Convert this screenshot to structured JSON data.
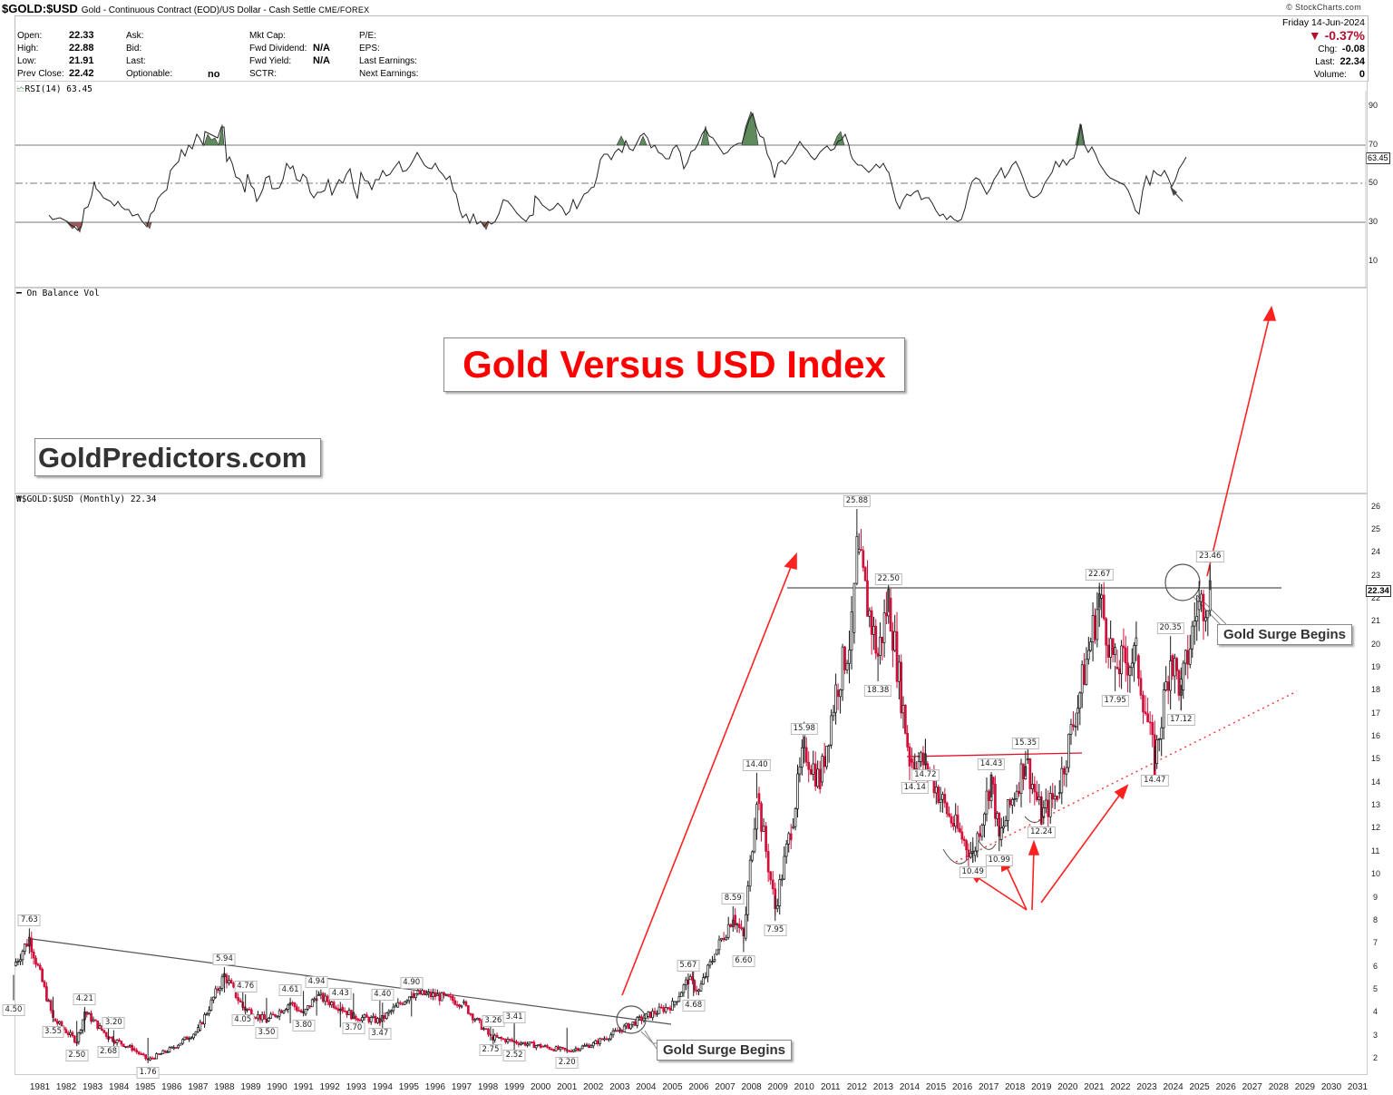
{
  "header": {
    "symbol": "$GOLD:$USD",
    "description": "Gold - Continuous Contract (EOD)/US Dollar - Cash Settle",
    "exchange": "CME/FOREX",
    "copyright": "© StockCharts.com",
    "quote": {
      "open_label": "Open:",
      "open": "22.33",
      "high_label": "High:",
      "high": "22.88",
      "low_label": "Low:",
      "low": "21.91",
      "prev_close_label": "Prev Close:",
      "prev_close": "22.42",
      "ask_label": "Ask:",
      "bid_label": "Bid:",
      "last_label": "Last:",
      "optionable_label": "Optionable:",
      "optionable": "no",
      "mkt_cap_label": "Mkt Cap:",
      "fwd_dividend_label": "Fwd Dividend:",
      "fwd_dividend": "N/A",
      "fwd_yield_label": "Fwd Yield:",
      "fwd_yield": "N/A",
      "sctr_label": "SCTR:",
      "pe_label": "P/E:",
      "eps_label": "EPS:",
      "last_earnings_label": "Last Earnings:",
      "next_earnings_label": "Next Earnings:"
    },
    "right": {
      "date": "Friday  14-Jun-2024",
      "pct_change": "▼ -0.37%",
      "chg_label": "Chg:",
      "chg": "-0.08",
      "last_label": "Last:",
      "last": "22.34",
      "volume_label": "Volume:",
      "volume": "0"
    }
  },
  "rsi_panel": {
    "legend": "RSI(14) 63.45",
    "current_value": "63.45",
    "ticks": [
      "90",
      "70",
      "50",
      "30",
      "10"
    ]
  },
  "obv_panel": {
    "legend": "On Balance Vol"
  },
  "annotations": {
    "main_title": "Gold Versus USD Index",
    "brand": "GoldPredictors.com",
    "callout_1": "Gold Surge Begins",
    "callout_2": "Gold Surge Begins"
  },
  "price_panel": {
    "legend": "$GOLD:$USD (Monthly) 22.34",
    "last_value": "22.34",
    "ticks": [
      "26",
      "25",
      "24",
      "23",
      "22",
      "21",
      "20",
      "19",
      "18",
      "17",
      "16",
      "15",
      "14",
      "13",
      "12",
      "11",
      "10",
      "9",
      "8",
      "7",
      "6",
      "5",
      "4",
      "3",
      "2"
    ]
  },
  "colors": {
    "up": "#000000",
    "down": "#d0103a",
    "annotation_red": "#ff0000",
    "overbought_fill": "#5e8a5e",
    "oversold_fill": "#a05a5a"
  },
  "chart_data": {
    "type": "candlestick",
    "title": "Gold Versus USD Index",
    "subtitle": "$GOLD:$USD (Monthly) 22.34",
    "xlabel": "",
    "ylabel": "",
    "x_ticks": [
      "1981",
      "1982",
      "1983",
      "1984",
      "1985",
      "1986",
      "1987",
      "1988",
      "1989",
      "1990",
      "1991",
      "1992",
      "1993",
      "1994",
      "1995",
      "1996",
      "1997",
      "1998",
      "1999",
      "2000",
      "2001",
      "2002",
      "2003",
      "2004",
      "2005",
      "2006",
      "2007",
      "2008",
      "2009",
      "2010",
      "2011",
      "2012",
      "2013",
      "2014",
      "2015",
      "2016",
      "2017",
      "2018",
      "2019",
      "2020",
      "2021",
      "2022",
      "2023",
      "2024",
      "2025",
      "2026",
      "2027",
      "2028",
      "2029",
      "2030",
      "2031"
    ],
    "ylim": [
      1.5,
      26.5
    ],
    "labeled_points": [
      {
        "x": 1980.0,
        "value": 4.5,
        "type": "low"
      },
      {
        "x": 1980.6,
        "value": 7.63,
        "type": "high"
      },
      {
        "x": 1981.5,
        "value": 3.55,
        "type": "low"
      },
      {
        "x": 1982.4,
        "value": 2.5,
        "type": "low"
      },
      {
        "x": 1982.7,
        "value": 4.21,
        "type": "high"
      },
      {
        "x": 1983.6,
        "value": 2.68,
        "type": "low"
      },
      {
        "x": 1983.8,
        "value": 3.2,
        "type": "high"
      },
      {
        "x": 1985.1,
        "value": 1.76,
        "type": "low"
      },
      {
        "x": 1988.0,
        "value": 5.94,
        "type": "high"
      },
      {
        "x": 1988.8,
        "value": 4.76,
        "type": "high"
      },
      {
        "x": 1988.7,
        "value": 4.05,
        "type": "low"
      },
      {
        "x": 1989.6,
        "value": 3.5,
        "type": "low"
      },
      {
        "x": 1990.5,
        "value": 4.61,
        "type": "high"
      },
      {
        "x": 1991.0,
        "value": 3.8,
        "type": "low"
      },
      {
        "x": 1991.5,
        "value": 4.94,
        "type": "high"
      },
      {
        "x": 1992.4,
        "value": 4.43,
        "type": "high"
      },
      {
        "x": 1992.9,
        "value": 3.7,
        "type": "low"
      },
      {
        "x": 1993.9,
        "value": 3.47,
        "type": "low"
      },
      {
        "x": 1994.0,
        "value": 4.4,
        "type": "high"
      },
      {
        "x": 1995.1,
        "value": 4.9,
        "type": "high"
      },
      {
        "x": 1998.2,
        "value": 3.26,
        "type": "high"
      },
      {
        "x": 1998.1,
        "value": 2.75,
        "type": "low"
      },
      {
        "x": 1999.0,
        "value": 3.41,
        "type": "high"
      },
      {
        "x": 1999.0,
        "value": 2.52,
        "type": "low"
      },
      {
        "x": 2001.0,
        "value": 2.2,
        "type": "low"
      },
      {
        "x": 2005.6,
        "value": 5.67,
        "type": "high"
      },
      {
        "x": 2005.8,
        "value": 4.68,
        "type": "low"
      },
      {
        "x": 2007.3,
        "value": 8.59,
        "type": "high"
      },
      {
        "x": 2007.7,
        "value": 6.6,
        "type": "low"
      },
      {
        "x": 2008.9,
        "value": 7.95,
        "type": "low"
      },
      {
        "x": 2008.2,
        "value": 14.4,
        "type": "high"
      },
      {
        "x": 2010.0,
        "value": 15.98,
        "type": "high"
      },
      {
        "x": 2012.0,
        "value": 25.88,
        "type": "high"
      },
      {
        "x": 2013.2,
        "value": 22.5,
        "type": "high"
      },
      {
        "x": 2012.8,
        "value": 18.38,
        "type": "low"
      },
      {
        "x": 2014.2,
        "value": 14.14,
        "type": "low"
      },
      {
        "x": 2014.6,
        "value": 14.72,
        "type": "low"
      },
      {
        "x": 2016.4,
        "value": 10.49,
        "type": "low"
      },
      {
        "x": 2017.1,
        "value": 14.43,
        "type": "high"
      },
      {
        "x": 2017.4,
        "value": 10.99,
        "type": "low"
      },
      {
        "x": 2018.4,
        "value": 15.35,
        "type": "high"
      },
      {
        "x": 2019.0,
        "value": 12.24,
        "type": "low"
      },
      {
        "x": 2021.2,
        "value": 22.67,
        "type": "high"
      },
      {
        "x": 2021.8,
        "value": 17.95,
        "type": "low"
      },
      {
        "x": 2023.3,
        "value": 14.47,
        "type": "low"
      },
      {
        "x": 2023.9,
        "value": 20.35,
        "type": "high"
      },
      {
        "x": 2024.3,
        "value": 17.12,
        "type": "low"
      },
      {
        "x": 2025.4,
        "value": 23.46,
        "type": "high"
      }
    ],
    "horizontal_lines": [
      {
        "value": 22.5,
        "from": 2010.5,
        "to": 2029.0,
        "color": "#444"
      },
      {
        "value": 15.1,
        "from": 2014.0,
        "to": 2021.0,
        "color": "#ff0000"
      }
    ],
    "trendlines": [
      {
        "name": "1980-2003 downtrend",
        "points": [
          [
            1980.5,
            7.2
          ],
          [
            2005.0,
            3.6
          ]
        ],
        "color": "#444"
      },
      {
        "name": "rising support (dotted)",
        "points": [
          [
            2016.4,
            10.49
          ],
          [
            2029.5,
            17.9
          ]
        ],
        "color": "#ff0000",
        "style": "dotted"
      }
    ],
    "rsi": {
      "name": "RSI(14)",
      "last": 63.45,
      "levels": [
        70,
        50,
        30
      ],
      "ylim": [
        0,
        100
      ]
    },
    "series": [
      {
        "name": "$GOLD:$USD monthly (approximate closes)",
        "x": [
          1980.0,
          1980.6,
          1981.5,
          1982.4,
          1982.7,
          1983.6,
          1984.5,
          1985.1,
          1986.0,
          1987.0,
          1988.0,
          1988.7,
          1989.6,
          1990.5,
          1991.0,
          1991.5,
          1992.4,
          1992.9,
          1993.9,
          1994.5,
          1995.1,
          1996.0,
          1997.0,
          1998.1,
          1999.0,
          2000.0,
          2001.0,
          2002.0,
          2003.0,
          2004.0,
          2005.0,
          2005.6,
          2006.0,
          2006.6,
          2007.3,
          2007.7,
          2008.2,
          2008.9,
          2009.5,
          2010.0,
          2010.6,
          2011.2,
          2011.8,
          2012.0,
          2012.8,
          2013.2,
          2014.0,
          2014.6,
          2015.5,
          2016.4,
          2017.1,
          2017.4,
          2018.4,
          2019.0,
          2019.6,
          2020.3,
          2021.2,
          2021.8,
          2022.6,
          2023.3,
          2023.9,
          2024.3,
          2024.9,
          2025.4
        ],
        "values": [
          6.0,
          7.2,
          3.7,
          2.7,
          4.0,
          2.9,
          2.4,
          1.9,
          2.4,
          3.2,
          5.6,
          4.2,
          3.6,
          4.4,
          3.9,
          4.7,
          4.2,
          3.8,
          3.6,
          4.2,
          4.8,
          4.7,
          4.4,
          2.9,
          2.7,
          2.5,
          2.3,
          2.6,
          3.2,
          3.8,
          4.3,
          5.4,
          4.9,
          6.5,
          8.2,
          7.2,
          13.5,
          8.5,
          12.0,
          15.5,
          14.0,
          18.0,
          20.5,
          24.0,
          19.5,
          22.0,
          15.0,
          14.8,
          12.5,
          10.8,
          14.2,
          11.5,
          15.0,
          12.5,
          13.5,
          17.0,
          22.0,
          19.0,
          19.5,
          14.8,
          19.5,
          18.0,
          21.5,
          22.34
        ]
      }
    ]
  }
}
